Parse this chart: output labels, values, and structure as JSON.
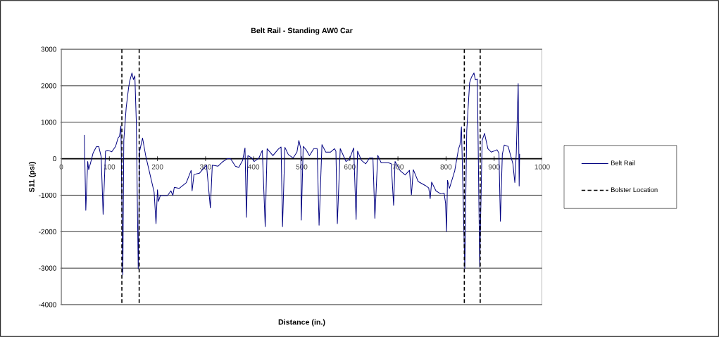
{
  "chart_data": {
    "type": "line",
    "title": "Belt Rail - Standing AW0 Car",
    "xlabel": "Distance (in.)",
    "ylabel": "S11 (psi)",
    "xlim": [
      0,
      1000
    ],
    "xticks": [
      0,
      100,
      200,
      300,
      400,
      500,
      600,
      700,
      800,
      900,
      1000
    ],
    "ylim": [
      -4000,
      3000
    ],
    "yticks": [
      -4000,
      -3000,
      -2000,
      -1000,
      0,
      1000,
      2000,
      3000
    ],
    "grid": "y",
    "legend": "right",
    "marker": "none",
    "series": [
      {
        "name": "Belt Rail",
        "color": "#000080",
        "line_style": "solid",
        "x": [
          48,
          51,
          55,
          57,
          61,
          66,
          73,
          78,
          83,
          87,
          92,
          97,
          105,
          113,
          118,
          121,
          124,
          128,
          130,
          135,
          140,
          142,
          147,
          150,
          153,
          156,
          160,
          163,
          169,
          176,
          185,
          193,
          197,
          200,
          202,
          206,
          221,
          228,
          232,
          235,
          245,
          260,
          270,
          272,
          276,
          287,
          302,
          310,
          314,
          326,
          336,
          345,
          352,
          362,
          369,
          377,
          382,
          385,
          388,
          396,
          401,
          411,
          418,
          424,
          428,
          440,
          452,
          457,
          460,
          465,
          472,
          482,
          490,
          494,
          498,
          499,
          503,
          509,
          516,
          525,
          532,
          536,
          542,
          550,
          560,
          568,
          571,
          574,
          580,
          592,
          599,
          608,
          613,
          616,
          624,
          633,
          641,
          648,
          652,
          658,
          665,
          680,
          686,
          691,
          694,
          705,
          715,
          724,
          728,
          732,
          742,
          757,
          764,
          767,
          770,
          779,
          789,
          796,
          799,
          801,
          803,
          807,
          818,
          826,
          829,
          832,
          839,
          843,
          849,
          853,
          858,
          861,
          865,
          870,
          875,
          880,
          887,
          894,
          906,
          910,
          913,
          917,
          921,
          929,
          939,
          943,
          946,
          950,
          952,
          953
        ],
        "values": [
          650,
          -1415,
          -77,
          -300,
          -110,
          150,
          330,
          330,
          50,
          -1525,
          210,
          230,
          190,
          340,
          565,
          610,
          900,
          -3180,
          500,
          1400,
          1950,
          2110,
          2350,
          2170,
          2270,
          1015,
          -3020,
          210,
          565,
          50,
          -460,
          -910,
          -1780,
          -850,
          -1170,
          -1010,
          -1010,
          -880,
          -1010,
          -785,
          -815,
          -655,
          -320,
          -880,
          -430,
          -400,
          -175,
          -1350,
          -175,
          -205,
          -80,
          0,
          0,
          -205,
          -240,
          -45,
          295,
          -1610,
          85,
          20,
          -77,
          20,
          230,
          -1865,
          275,
          85,
          275,
          320,
          -1865,
          310,
          115,
          20,
          180,
          500,
          275,
          -1685,
          340,
          245,
          85,
          275,
          275,
          -1825,
          385,
          180,
          180,
          275,
          210,
          -1780,
          275,
          -77,
          -15,
          295,
          -1665,
          210,
          -45,
          -140,
          20,
          20,
          -1635,
          95,
          -110,
          -110,
          -140,
          -1280,
          -77,
          -335,
          -445,
          -320,
          -990,
          -300,
          -625,
          -735,
          -800,
          -1095,
          -640,
          -880,
          -965,
          -945,
          -1220,
          -1995,
          -590,
          -815,
          -335,
          275,
          385,
          875,
          -3005,
          760,
          2080,
          2240,
          2350,
          2160,
          2185,
          -2970,
          500,
          695,
          275,
          180,
          245,
          150,
          -1715,
          115,
          375,
          340,
          -140,
          -655,
          150,
          2060,
          -750,
          130
        ]
      },
      {
        "name": "Bolster Location",
        "color": "#000000",
        "line_style": "dashed",
        "x": [
          126,
          126,
          null,
          162,
          162,
          null,
          838,
          838,
          null,
          871,
          871
        ],
        "values": [
          3000,
          -4000,
          null,
          3000,
          -4000,
          null,
          3000,
          -4000,
          null,
          3000,
          -4000
        ]
      }
    ]
  }
}
